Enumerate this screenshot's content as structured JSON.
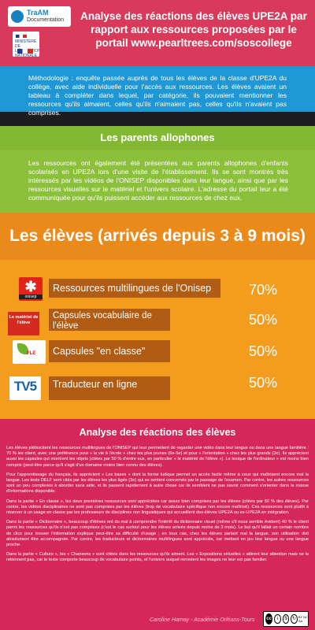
{
  "header": {
    "logo_traam": "TraAM",
    "logo_traam_sub": "Documentation",
    "logo_ministere": "MINISTÈRE DE L'ÉDUCATION NATIONALE",
    "title": "Analyse des réactions des élèves UPE2A par rapport aux ressources proposées par le portail www.pearltrees.com/soscollege"
  },
  "methodology": {
    "text": "Méthodologie : enquête passée auprès de tous les élèves de la classe d'UPE2A du collège, avec aide individuelle pour l'accès aux ressources. Les élèves avaient un tableau à compléter dans lequel, par catégorie, ils pouvaient mentionner les ressources qu'ils aimaient, celles qu'ils n'aimaient pas, celles qu'ils n'avaient pas comprises."
  },
  "parents": {
    "title": "Les parents allophones",
    "text": "Les ressources ont également été présentées aux parents allophones d'enfants scolarisés en UPE2A lors d'une visite de l'établissement. Ils se sont montrés très intéressés par les vidéos de l'ONISEP disponibles dans leur langue, ainsi que par les ressources visuelles sur le matériel et l'univers scolaire. L'adresse du portail leur a été communiquée pour qu'ils puissent accéder aux ressources de chez eux."
  },
  "students": {
    "title": "Les élèves (arrivés depuis 3 à 9 mois)",
    "items": [
      {
        "icon_text": "onisep",
        "label": "Ressources multilingues de l'Onisep",
        "pct": "70%",
        "level": 0.7
      },
      {
        "icon_text": "Le matériel de l'élève",
        "label": "Capsules vocabulaire de l'élève",
        "pct": "50%",
        "level": 0.5
      },
      {
        "icon_text": "FLE",
        "label": "Capsules \"en classe\"",
        "pct": "50%",
        "level": 0.5
      },
      {
        "icon_text": "TV5",
        "label": "Traducteur en ligne",
        "pct": "50%",
        "level": 0.5
      }
    ]
  },
  "analysis": {
    "title": "Analyse des réactions des élèves",
    "paragraphs": [
      "Les élèves plébiscitent les ressources multilingues de l'ONISEP qui leur permettent de regarder une vidéo dans leur langue ou dans une langue familière : 70 % les citent, avec une préférence pour « la vie à l'école » chez les plus jeunes (6e-5e) et pour « l'orientation » chez les plus grands (3e). Ils apprécient aussi les capsules qui montrent les objets (citées par 50 % d'entre eux, en particulier « le matériel de l'élève »). Le lexique de l'ordinateur » est moins bien compris (peut-être parce qu'il s'agit d'un domaine moins bien connu des élèves).",
      "Pour l'apprentissage du français, ils apprécient « Les bases » dont la forme ludique permet un accès facile même à ceux qui maîtrisent encore mal la langue. Les tests DELF sont cités par les élèves les plus âgés (3e) qui se sentent concernés par le passage de l'examen. Par contre, les autres ressources sont un peu complexes à aborder sans aide, et ils passent rapidement à autre chose car ils semblent ne pas savoir comment s'orienter dans la masse d'informations disponible.",
      "Dans la partie « En classe », les deux premières ressources sont appréciées car assez bien comprises par les élèves (citées par 50 % des élèves). Par contre, les vidéos disciplinaires ne sont pas comprises par les élèves (trop de vocabulaire spécifique non encore maîtrisé). Ces ressources sont plutôt à réserver à un usage en classe par les professeurs de disciplines non linguistiques qui accueillent des élèves UPE2A ou ex-UPE2A en intégration.",
      "Dans la partie « Dictionnaire », beaucoup d'élèves ont du mal à comprendre l'intérêt du dictionnaire visuel (même s'il nous semble évident) 40 % le citent parmi les ressources qu'ils n'ont pas comprises (c'est le cas surtout pour les élèves arrivés depuis moins de 3 mois). Le but qu'il fallait un certain nombre de clics pour trouver l'information explique peut-être sa difficulté d'usage ; en tous cas, chez les élèves parlant mal la langue, son utilisation doit absolument être accompagnée. Par contre, les traducteurs et dictionnaires multilingues sont appréciés, car mettant en jeu leur langue ou une langue proche.",
      "Dans la partie « Culture », les « Chansons » sont citées dans les ressources qu'ils aiment. Les « Expositions virtuelles » attirent leur attention mais ne la retiennent pas, car le texte comporte beaucoup de vocabulaire pointu, et l'univers auquel renvoient les images ne leur est pas familier."
    ],
    "credit": "Caroline Hamay - Académie Orléans-Tours",
    "license": "BY NC SA"
  },
  "colors": {
    "header": "#d93a5b",
    "methodology": "#1e97d4",
    "parents": "#83b932",
    "students": "#f39c1e",
    "analysis": "#d6275a"
  }
}
